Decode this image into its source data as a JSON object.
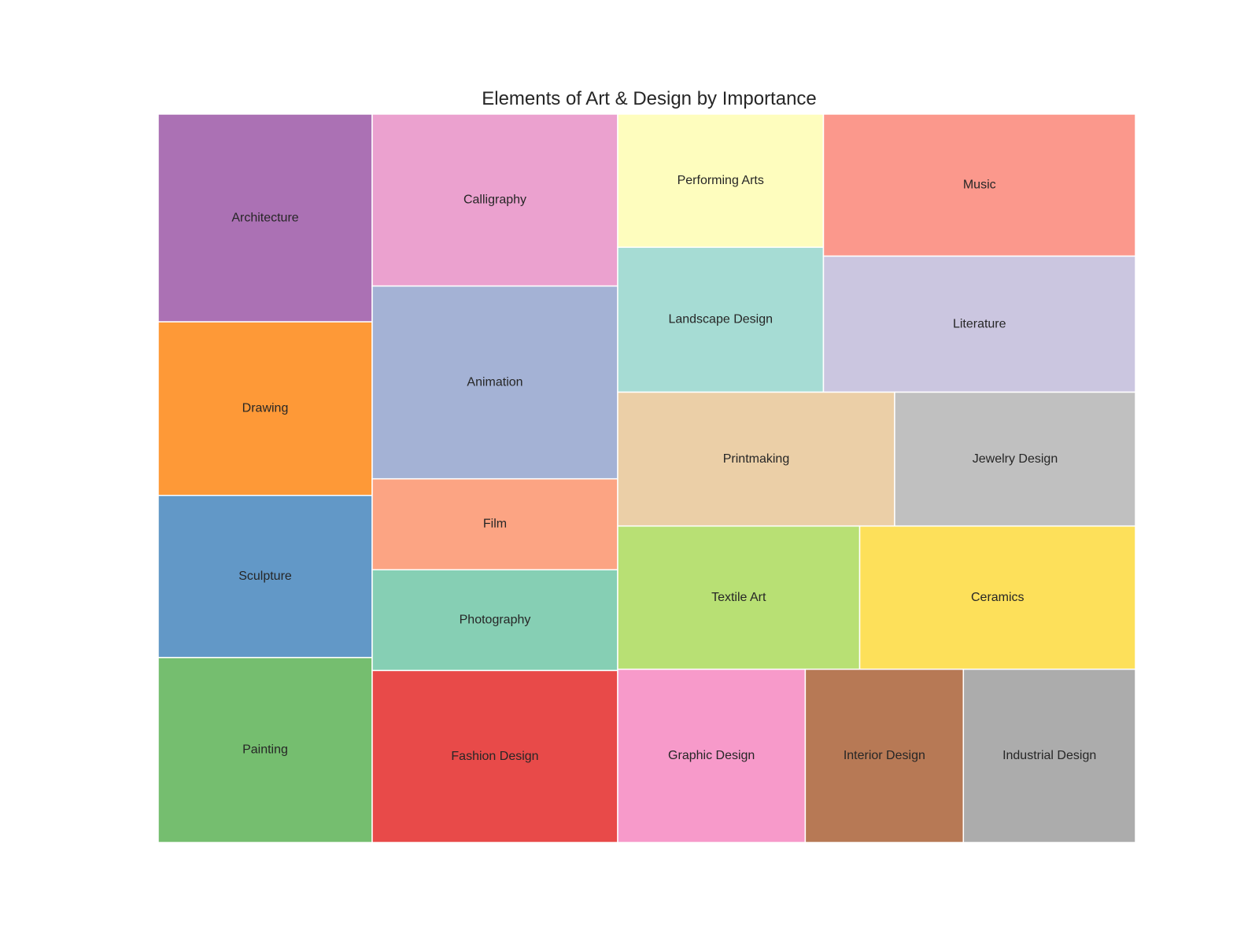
{
  "chart_data": {
    "type": "treemap",
    "title": "Elements of Art & Design by Importance",
    "xlabel": "",
    "ylabel": "",
    "grid": false,
    "legend": "none",
    "items": [
      {
        "label": "Architecture",
        "value": 16.4,
        "color": "#ab71b4"
      },
      {
        "label": "Drawing",
        "value": 13.7,
        "color": "#fe9937"
      },
      {
        "label": "Sculpture",
        "value": 12.8,
        "color": "#6298c7"
      },
      {
        "label": "Painting",
        "value": 14.6,
        "color": "#75be6f"
      },
      {
        "label": "Calligraphy",
        "value": 15.7,
        "color": "#eba1cf"
      },
      {
        "label": "Animation",
        "value": 17.6,
        "color": "#a4b2d5"
      },
      {
        "label": "Film",
        "value": 8.3,
        "color": "#fca483"
      },
      {
        "label": "Photography",
        "value": 9.2,
        "color": "#86cfb4"
      },
      {
        "label": "Fashion Design",
        "value": 15.7,
        "color": "#e84a49"
      },
      {
        "label": "Performing Arts",
        "value": 10.2,
        "color": "#fefdbe"
      },
      {
        "label": "Landscape Design",
        "value": 11.1,
        "color": "#a6dcd4"
      },
      {
        "label": "Music",
        "value": 16.5,
        "color": "#fb988c"
      },
      {
        "label": "Literature",
        "value": 15.8,
        "color": "#cbc6e0"
      },
      {
        "label": "Printmaking",
        "value": 13.8,
        "color": "#ebcfa7"
      },
      {
        "label": "Jewelry Design",
        "value": 12.0,
        "color": "#c0c0c0"
      },
      {
        "label": "Textile Art",
        "value": 12.9,
        "color": "#b8e074"
      },
      {
        "label": "Ceramics",
        "value": 14.7,
        "color": "#fde05a"
      },
      {
        "label": "Graphic Design",
        "value": 12.1,
        "color": "#f79aca"
      },
      {
        "label": "Interior Design",
        "value": 10.2,
        "color": "#b77955"
      },
      {
        "label": "Industrial Design",
        "value": 11.1,
        "color": "#acacac"
      }
    ]
  }
}
